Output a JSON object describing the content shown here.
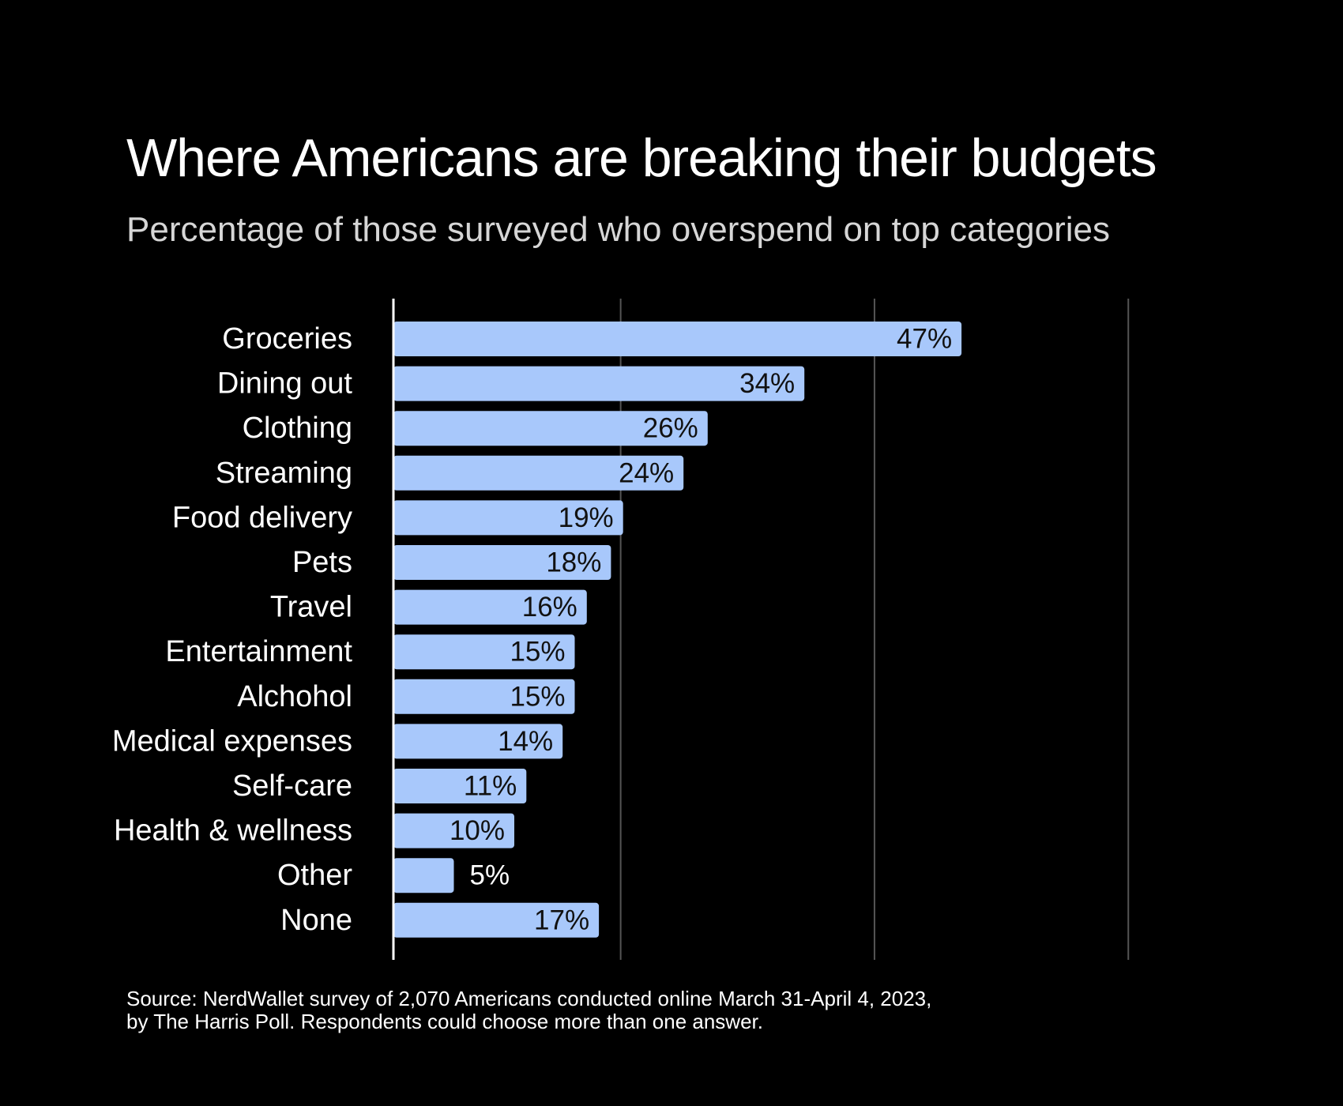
{
  "colors": {
    "background": "#000000",
    "bar": "#a8c8fb",
    "grid": "#555555",
    "axis": "#ffffff",
    "text": "#ffffff",
    "value_text": "#111111"
  },
  "chart_data": {
    "type": "bar",
    "orientation": "horizontal",
    "title": "Where Americans are breaking their budgets",
    "subtitle": "Percentage of those surveyed who overspend on top categories",
    "categories": [
      "Groceries",
      "Dining out",
      "Clothing",
      "Streaming",
      "Food delivery",
      "Pets",
      "Travel",
      "Entertainment",
      "Alchohol",
      "Medical expenses",
      "Self-care",
      "Health & wellness",
      "Other",
      "None"
    ],
    "values": [
      47,
      34,
      26,
      24,
      19,
      18,
      16,
      15,
      15,
      14,
      11,
      10,
      5,
      17
    ],
    "value_labels": [
      "47%",
      "34%",
      "26%",
      "24%",
      "19%",
      "18%",
      "16%",
      "15%",
      "15%",
      "14%",
      "11%",
      "10%",
      "5%",
      "17%"
    ],
    "xlim": [
      0,
      61
    ],
    "gridlines_at": [
      0,
      18.8,
      39.8,
      60.8
    ],
    "xlabel": "",
    "ylabel": "",
    "legend": "none"
  },
  "source": {
    "line1": "Source: NerdWallet survey of 2,070 Americans conducted online March 31-April 4, 2023,",
    "line2": "by The Harris Poll. Respondents could choose more than one answer."
  }
}
